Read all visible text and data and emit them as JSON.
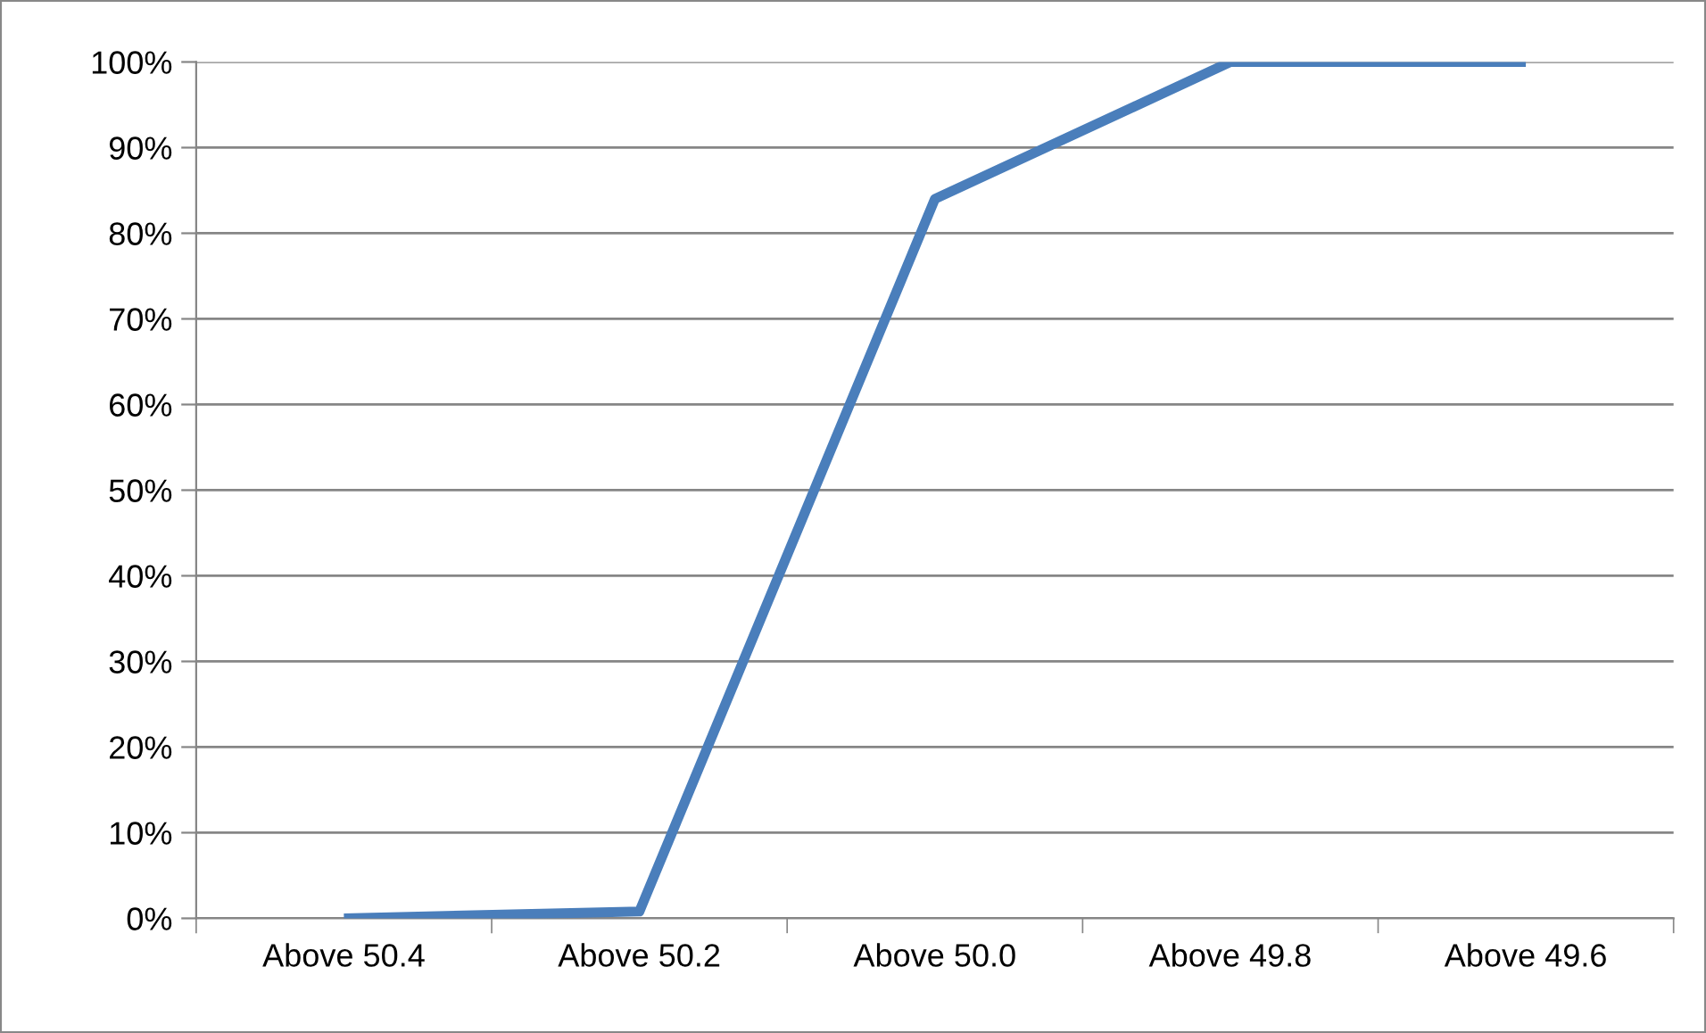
{
  "chart_data": {
    "type": "line",
    "categories": [
      "Above 50.4",
      "Above 50.2",
      "Above 50.0",
      "Above 49.8",
      "Above 49.6"
    ],
    "series": [
      {
        "color": "#4a7ebb",
        "values": [
          0,
          0.8,
          84,
          100,
          100
        ]
      }
    ],
    "ylim": [
      0,
      100
    ],
    "yticks": [
      {
        "value": 0,
        "label": "0%"
      },
      {
        "value": 10,
        "label": "10%"
      },
      {
        "value": 20,
        "label": "20%"
      },
      {
        "value": 30,
        "label": "30%"
      },
      {
        "value": 40,
        "label": "40%"
      },
      {
        "value": 50,
        "label": "50%"
      },
      {
        "value": 60,
        "label": "60%"
      },
      {
        "value": 70,
        "label": "70%"
      },
      {
        "value": 80,
        "label": "80%"
      },
      {
        "value": 90,
        "label": "90%"
      },
      {
        "value": 100,
        "label": "100%"
      }
    ],
    "grid": "y",
    "marker": "none",
    "line_style": "solid"
  }
}
